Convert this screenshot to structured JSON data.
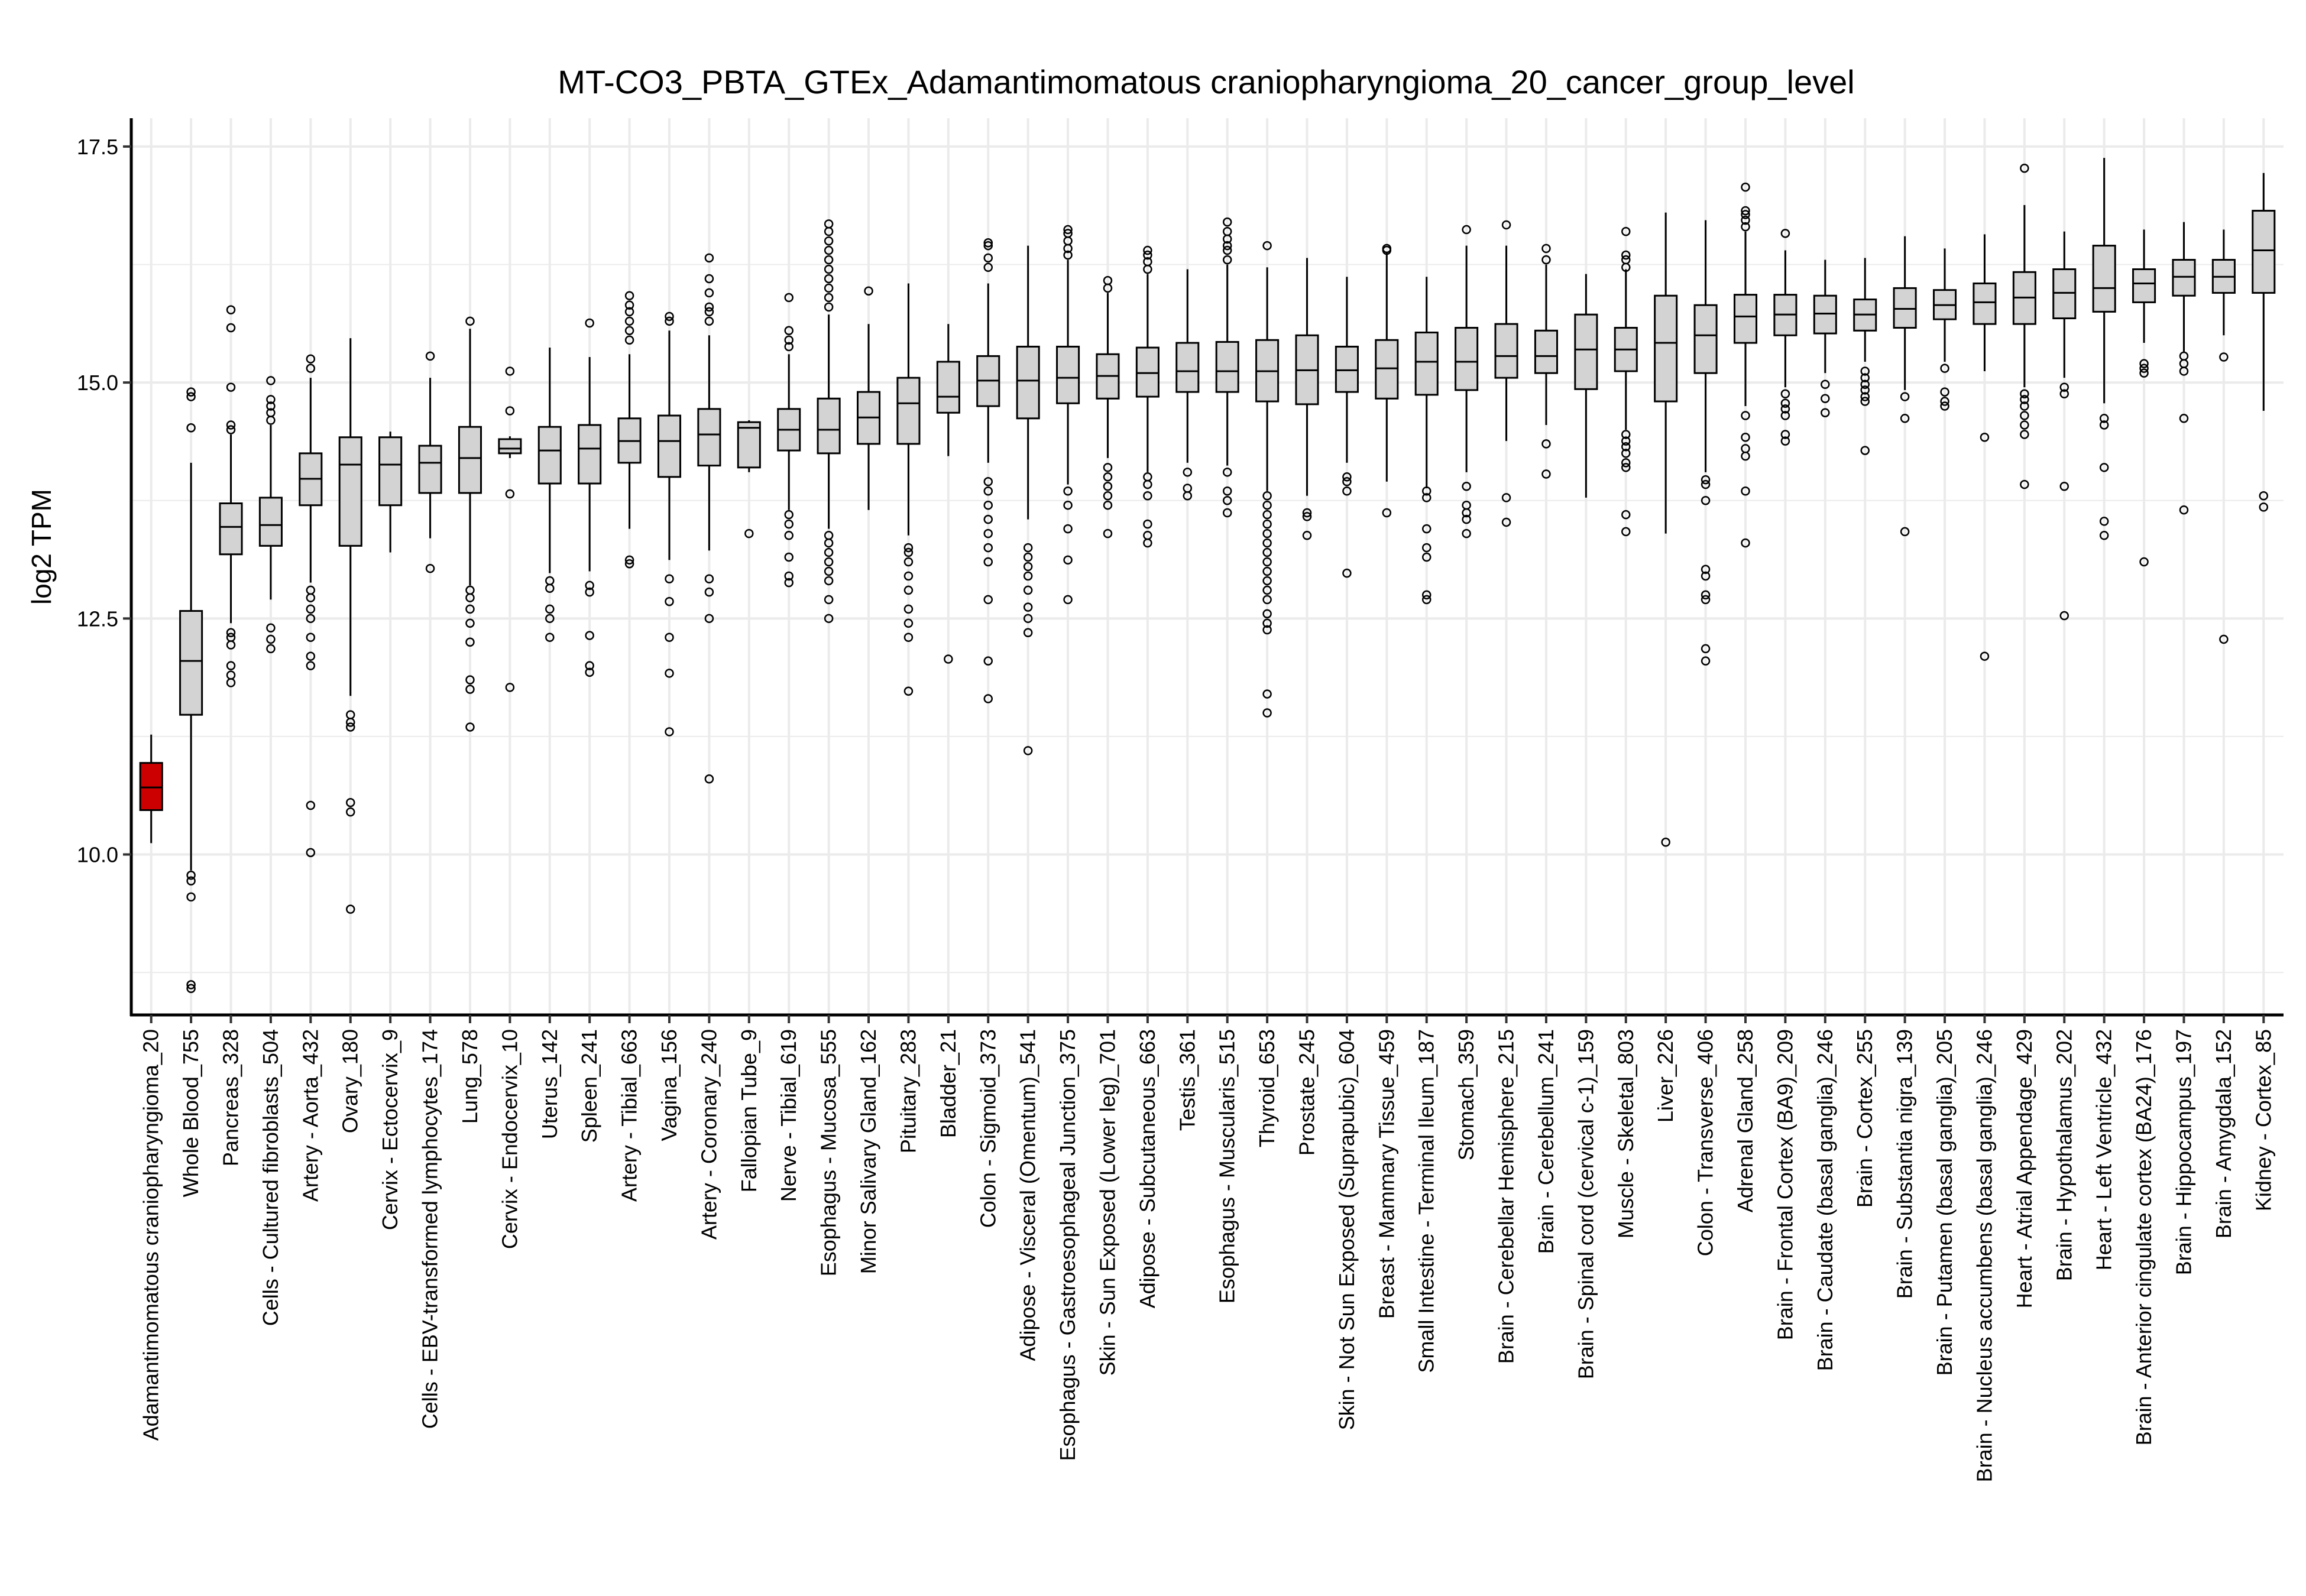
{
  "chart_data": {
    "type": "boxplot",
    "title": "MT-CO3_PBTA_GTEx_Adamantimomatous craniopharyngioma_20_cancer_group_level",
    "xlabel": "",
    "ylabel": "log2 TPM",
    "ylim": [
      8.3,
      17.8
    ],
    "yticks": [
      "10.0",
      "12.5",
      "15.0",
      "17.5"
    ],
    "grid": true,
    "legend": "none",
    "colors": {
      "highlight": "#CC0000",
      "default": "#D3D3D3",
      "outline": "#000000",
      "grid": "#EBEBEB"
    },
    "series": [
      {
        "label": "Adamantimomatous craniopharyngioma_20",
        "min": 10.12,
        "q1": 10.47,
        "median": 10.71,
        "q3": 10.97,
        "max": 11.27,
        "outliers": [],
        "highlight": true
      },
      {
        "label": "Whole Blood_755",
        "min": 9.83,
        "q1": 11.48,
        "median": 12.05,
        "q3": 12.58,
        "max": 14.15,
        "outliers": [
          9.78,
          9.72,
          9.55,
          8.62,
          8.58,
          14.52,
          14.85,
          14.9
        ]
      },
      {
        "label": "Pancreas_328",
        "min": 12.45,
        "q1": 13.18,
        "median": 13.47,
        "q3": 13.72,
        "max": 14.45,
        "outliers": [
          12.35,
          12.3,
          12.22,
          12.0,
          11.9,
          11.82,
          14.5,
          14.55,
          14.95,
          15.58,
          15.77
        ]
      },
      {
        "label": "Cells - Cultured fibroblasts_504",
        "min": 12.7,
        "q1": 13.27,
        "median": 13.49,
        "q3": 13.78,
        "max": 14.55,
        "outliers": [
          12.4,
          12.28,
          12.18,
          14.6,
          14.68,
          14.75,
          14.82,
          15.02
        ]
      },
      {
        "label": "Artery - Aorta_432",
        "min": 12.88,
        "q1": 13.7,
        "median": 13.98,
        "q3": 14.25,
        "max": 15.05,
        "outliers": [
          12.8,
          12.72,
          12.6,
          12.5,
          12.3,
          12.1,
          12.0,
          10.52,
          10.02,
          15.15,
          15.25
        ]
      },
      {
        "label": "Ovary_180",
        "min": 11.68,
        "q1": 13.27,
        "median": 14.13,
        "q3": 14.42,
        "max": 15.47,
        "outliers": [
          11.48,
          11.4,
          11.35,
          10.55,
          10.45,
          9.42
        ]
      },
      {
        "label": "Cervix - Ectocervix_9",
        "min": 13.2,
        "q1": 13.7,
        "median": 14.13,
        "q3": 14.42,
        "max": 14.48,
        "outliers": []
      },
      {
        "label": "Cells - EBV-transformed lymphocytes_174",
        "min": 13.35,
        "q1": 13.83,
        "median": 14.15,
        "q3": 14.33,
        "max": 15.05,
        "outliers": [
          13.03,
          15.28
        ]
      },
      {
        "label": "Lung_578",
        "min": 12.85,
        "q1": 13.83,
        "median": 14.2,
        "q3": 14.53,
        "max": 15.57,
        "outliers": [
          12.8,
          12.72,
          12.6,
          12.45,
          12.25,
          11.85,
          11.75,
          11.35,
          15.65
        ]
      },
      {
        "label": "Cervix - Endocervix_10",
        "min": 14.2,
        "q1": 14.25,
        "median": 14.3,
        "q3": 14.4,
        "max": 14.43,
        "outliers": [
          13.82,
          14.7,
          15.12,
          11.77
        ]
      },
      {
        "label": "Uterus_142",
        "min": 12.98,
        "q1": 13.93,
        "median": 14.28,
        "q3": 14.53,
        "max": 15.37,
        "outliers": [
          12.9,
          12.82,
          12.6,
          12.5,
          12.3
        ]
      },
      {
        "label": "Spleen_241",
        "min": 13.0,
        "q1": 13.93,
        "median": 14.3,
        "q3": 14.55,
        "max": 15.27,
        "outliers": [
          12.85,
          12.78,
          12.0,
          11.93,
          12.32,
          15.63
        ]
      },
      {
        "label": "Artery - Tibial_663",
        "min": 13.45,
        "q1": 14.15,
        "median": 14.38,
        "q3": 14.62,
        "max": 15.3,
        "outliers": [
          13.12,
          13.08,
          15.45,
          15.55,
          15.65,
          15.75,
          15.82,
          15.92
        ]
      },
      {
        "label": "Vagina_156",
        "min": 13.12,
        "q1": 14.0,
        "median": 14.38,
        "q3": 14.65,
        "max": 15.55,
        "outliers": [
          12.92,
          12.68,
          12.3,
          11.92,
          11.3,
          15.65,
          15.7
        ]
      },
      {
        "label": "Artery - Coronary_240",
        "min": 13.22,
        "q1": 14.12,
        "median": 14.45,
        "q3": 14.72,
        "max": 15.5,
        "outliers": [
          12.92,
          12.78,
          12.5,
          10.8,
          15.65,
          15.75,
          15.8,
          15.95,
          16.1,
          16.32
        ]
      },
      {
        "label": "Fallopian Tube_9",
        "min": 14.05,
        "q1": 14.1,
        "median": 14.52,
        "q3": 14.58,
        "max": 14.6,
        "outliers": [
          13.4
        ]
      },
      {
        "label": "Nerve - Tibial_619",
        "min": 13.65,
        "q1": 14.28,
        "median": 14.5,
        "q3": 14.72,
        "max": 15.3,
        "outliers": [
          13.6,
          13.5,
          13.38,
          13.15,
          12.95,
          12.88,
          15.38,
          15.45,
          15.55,
          15.9
        ]
      },
      {
        "label": "Esophagus - Mucosa_555",
        "min": 13.45,
        "q1": 14.25,
        "median": 14.5,
        "q3": 14.83,
        "max": 15.72,
        "outliers": [
          13.38,
          13.3,
          13.2,
          13.1,
          13.0,
          12.9,
          12.7,
          12.5,
          15.8,
          15.9,
          16.0,
          16.1,
          16.2,
          16.3,
          16.4,
          16.5,
          16.6,
          16.68
        ]
      },
      {
        "label": "Minor Salivary Gland_162",
        "min": 13.65,
        "q1": 14.35,
        "median": 14.63,
        "q3": 14.9,
        "max": 15.62,
        "outliers": [
          15.97
        ]
      },
      {
        "label": "Pituitary_283",
        "min": 13.38,
        "q1": 14.35,
        "median": 14.78,
        "q3": 15.05,
        "max": 16.05,
        "outliers": [
          13.25,
          13.2,
          13.1,
          12.95,
          12.8,
          12.6,
          12.45,
          12.3,
          11.73
        ]
      },
      {
        "label": "Bladder_21",
        "min": 14.22,
        "q1": 14.68,
        "median": 14.85,
        "q3": 15.22,
        "max": 15.62,
        "outliers": [
          12.07
        ]
      },
      {
        "label": "Colon - Sigmoid_373",
        "min": 14.15,
        "q1": 14.75,
        "median": 15.02,
        "q3": 15.28,
        "max": 16.05,
        "outliers": [
          13.95,
          13.85,
          13.7,
          13.55,
          13.4,
          13.25,
          13.1,
          12.7,
          12.05,
          11.65,
          16.22,
          16.32,
          16.45,
          16.48
        ]
      },
      {
        "label": "Adipose - Visceral (Omentum)_541",
        "min": 13.55,
        "q1": 14.62,
        "median": 15.02,
        "q3": 15.38,
        "max": 16.45,
        "outliers": [
          13.25,
          13.15,
          13.05,
          12.95,
          12.8,
          12.62,
          12.5,
          12.35,
          11.1
        ]
      },
      {
        "label": "Esophagus - Gastroesophageal Junction_375",
        "min": 13.92,
        "q1": 14.78,
        "median": 15.05,
        "q3": 15.38,
        "max": 16.3,
        "outliers": [
          13.85,
          13.7,
          13.45,
          13.12,
          12.7,
          16.35,
          16.42,
          16.5,
          16.58,
          16.62
        ]
      },
      {
        "label": "Skin - Sun Exposed (Lower leg)_701",
        "min": 14.2,
        "q1": 14.83,
        "median": 15.07,
        "q3": 15.3,
        "max": 15.95,
        "outliers": [
          14.1,
          14.0,
          13.9,
          13.8,
          13.7,
          13.4,
          16.0,
          16.08
        ]
      },
      {
        "label": "Adipose - Subcutaneous_663",
        "min": 14.05,
        "q1": 14.85,
        "median": 15.1,
        "q3": 15.37,
        "max": 16.15,
        "outliers": [
          14.0,
          13.92,
          13.8,
          13.5,
          13.38,
          13.3,
          16.2,
          16.28,
          16.35,
          16.4
        ]
      },
      {
        "label": "Testis_361",
        "min": 14.15,
        "q1": 14.9,
        "median": 15.12,
        "q3": 15.42,
        "max": 16.2,
        "outliers": [
          14.05,
          13.88,
          13.8
        ]
      },
      {
        "label": "Esophagus - Muscularis_515",
        "min": 14.12,
        "q1": 14.9,
        "median": 15.12,
        "q3": 15.43,
        "max": 16.25,
        "outliers": [
          14.05,
          13.85,
          13.75,
          13.62,
          16.3,
          16.4,
          16.45,
          16.52,
          16.6,
          16.7
        ]
      },
      {
        "label": "Thyroid_653",
        "min": 13.85,
        "q1": 14.8,
        "median": 15.12,
        "q3": 15.45,
        "max": 16.22,
        "outliers": [
          13.8,
          13.7,
          13.6,
          13.5,
          13.4,
          13.3,
          13.2,
          13.1,
          13.0,
          12.9,
          12.8,
          12.7,
          12.55,
          12.45,
          12.38,
          11.7,
          11.5,
          16.45
        ]
      },
      {
        "label": "Prostate_245",
        "min": 13.8,
        "q1": 14.77,
        "median": 15.13,
        "q3": 15.5,
        "max": 16.32,
        "outliers": [
          13.62,
          13.58,
          13.38
        ]
      },
      {
        "label": "Skin - Not Sun Exposed (Suprapubic)_604",
        "min": 14.15,
        "q1": 14.9,
        "median": 15.13,
        "q3": 15.38,
        "max": 16.12,
        "outliers": [
          14.0,
          13.95,
          13.85,
          12.98
        ]
      },
      {
        "label": "Breast - Mammary Tissue_459",
        "min": 13.95,
        "q1": 14.83,
        "median": 15.15,
        "q3": 15.45,
        "max": 16.38,
        "outliers": [
          13.62,
          16.4,
          16.42
        ]
      },
      {
        "label": "Small Intestine - Terminal Ileum_187",
        "min": 13.88,
        "q1": 14.87,
        "median": 15.22,
        "q3": 15.53,
        "max": 16.12,
        "outliers": [
          13.85,
          13.78,
          13.45,
          13.25,
          13.15,
          12.75,
          12.7
        ]
      },
      {
        "label": "Stomach_359",
        "min": 14.05,
        "q1": 14.92,
        "median": 15.22,
        "q3": 15.58,
        "max": 16.45,
        "outliers": [
          13.9,
          13.7,
          13.62,
          13.55,
          13.4,
          16.62
        ]
      },
      {
        "label": "Brain - Cerebellar Hemisphere_215",
        "min": 14.38,
        "q1": 15.05,
        "median": 15.28,
        "q3": 15.62,
        "max": 16.45,
        "outliers": [
          13.78,
          13.52,
          16.67
        ]
      },
      {
        "label": "Brain - Cerebellum_241",
        "min": 14.55,
        "q1": 15.1,
        "median": 15.28,
        "q3": 15.55,
        "max": 16.25,
        "outliers": [
          14.35,
          14.03,
          16.3,
          16.42
        ]
      },
      {
        "label": "Brain - Spinal cord (cervical c-1)_159",
        "min": 13.78,
        "q1": 14.93,
        "median": 15.35,
        "q3": 15.72,
        "max": 16.15,
        "outliers": []
      },
      {
        "label": "Muscle - Skeletal_803",
        "min": 14.5,
        "q1": 15.12,
        "median": 15.35,
        "q3": 15.58,
        "max": 16.2,
        "outliers": [
          14.45,
          14.38,
          14.32,
          14.25,
          14.15,
          14.1,
          13.6,
          13.42,
          16.22,
          16.3,
          16.35,
          16.6
        ]
      },
      {
        "label": "Liver_226",
        "min": 13.4,
        "q1": 14.8,
        "median": 15.42,
        "q3": 15.92,
        "max": 16.8,
        "outliers": [
          10.13
        ]
      },
      {
        "label": "Colon - Transverse_406",
        "min": 14.05,
        "q1": 15.1,
        "median": 15.5,
        "q3": 15.82,
        "max": 16.72,
        "outliers": [
          13.97,
          13.92,
          13.75,
          13.02,
          12.95,
          12.75,
          12.7,
          12.18,
          12.05
        ]
      },
      {
        "label": "Adrenal Gland_258",
        "min": 14.75,
        "q1": 15.42,
        "median": 15.7,
        "q3": 15.93,
        "max": 16.6,
        "outliers": [
          14.65,
          14.42,
          14.3,
          14.22,
          13.85,
          13.3,
          16.65,
          16.72,
          16.78,
          16.82,
          17.07
        ]
      },
      {
        "label": "Brain - Frontal Cortex (BA9)_209",
        "min": 14.95,
        "q1": 15.5,
        "median": 15.72,
        "q3": 15.93,
        "max": 16.4,
        "outliers": [
          14.88,
          14.78,
          14.72,
          14.65,
          14.45,
          14.38,
          16.58
        ]
      },
      {
        "label": "Brain - Caudate (basal ganglia)_246",
        "min": 15.1,
        "q1": 15.52,
        "median": 15.73,
        "q3": 15.92,
        "max": 16.3,
        "outliers": [
          14.98,
          14.83,
          14.68
        ]
      },
      {
        "label": "Brain - Cortex_255",
        "min": 15.22,
        "q1": 15.55,
        "median": 15.72,
        "q3": 15.88,
        "max": 16.32,
        "outliers": [
          15.12,
          15.05,
          14.98,
          14.92,
          14.85,
          14.8,
          14.28
        ]
      },
      {
        "label": "Brain - Substantia nigra_139",
        "min": 14.92,
        "q1": 15.58,
        "median": 15.78,
        "q3": 16.0,
        "max": 16.55,
        "outliers": [
          14.85,
          14.62,
          13.42
        ]
      },
      {
        "label": "Brain - Putamen (basal ganglia)_205",
        "min": 15.22,
        "q1": 15.67,
        "median": 15.82,
        "q3": 15.98,
        "max": 16.42,
        "outliers": [
          15.15,
          14.9,
          14.8,
          14.75
        ]
      },
      {
        "label": "Brain - Nucleus accumbens (basal ganglia)_246",
        "min": 15.12,
        "q1": 15.62,
        "median": 15.85,
        "q3": 16.05,
        "max": 16.57,
        "outliers": [
          14.42,
          12.1
        ]
      },
      {
        "label": "Heart - Atrial Appendage_429",
        "min": 14.95,
        "q1": 15.62,
        "median": 15.9,
        "q3": 16.17,
        "max": 16.88,
        "outliers": [
          14.88,
          14.82,
          14.75,
          14.65,
          14.55,
          14.45,
          13.92,
          17.27
        ]
      },
      {
        "label": "Brain - Hypothalamus_202",
        "min": 15.05,
        "q1": 15.68,
        "median": 15.95,
        "q3": 16.2,
        "max": 16.6,
        "outliers": [
          14.95,
          14.88,
          13.9,
          12.53
        ]
      },
      {
        "label": "Heart - Left Ventricle_432",
        "min": 14.78,
        "q1": 15.75,
        "median": 16.0,
        "q3": 16.45,
        "max": 17.38,
        "outliers": [
          14.62,
          14.55,
          14.1,
          13.53,
          13.38
        ]
      },
      {
        "label": "Brain - Anterior cingulate cortex (BA24)_176",
        "min": 15.42,
        "q1": 15.85,
        "median": 16.05,
        "q3": 16.2,
        "max": 16.62,
        "outliers": [
          15.2,
          15.15,
          15.1,
          13.1
        ]
      },
      {
        "label": "Brain - Hippocampus_197",
        "min": 15.32,
        "q1": 15.92,
        "median": 16.12,
        "q3": 16.3,
        "max": 16.7,
        "outliers": [
          15.28,
          15.2,
          15.12,
          14.62,
          13.65
        ]
      },
      {
        "label": "Brain - Amygdala_152",
        "min": 15.5,
        "q1": 15.95,
        "median": 16.12,
        "q3": 16.3,
        "max": 16.62,
        "outliers": [
          15.27,
          12.28
        ]
      },
      {
        "label": "Kidney - Cortex_85",
        "min": 14.7,
        "q1": 15.95,
        "median": 16.4,
        "q3": 16.82,
        "max": 17.22,
        "outliers": [
          13.8,
          13.68
        ]
      }
    ]
  }
}
